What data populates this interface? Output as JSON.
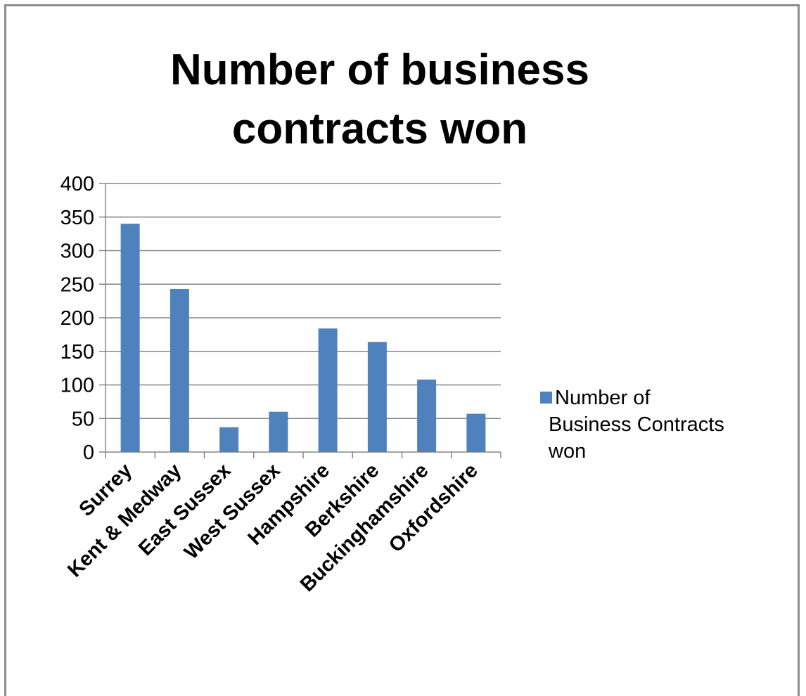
{
  "chart_data": {
    "type": "bar",
    "title": "Number of business contracts won",
    "title_lines": [
      "Number of business",
      "contracts won"
    ],
    "categories": [
      "Surrey",
      "Kent & Medway",
      "East Sussex",
      "West Sussex",
      "Hampshire",
      "Berkshire",
      "Buckinghamshire",
      "Oxfordshire"
    ],
    "series": [
      {
        "name": "Number of Business Contracts won",
        "name_lines": [
          "Number of",
          "Business Contracts",
          "won"
        ],
        "values": [
          340,
          243,
          37,
          60,
          184,
          164,
          108,
          57
        ],
        "color": "#4f81bd"
      }
    ],
    "xlabel": "",
    "ylabel": "",
    "ylim": [
      0,
      400
    ],
    "yticks": [
      0,
      50,
      100,
      150,
      200,
      250,
      300,
      350,
      400
    ],
    "grid": true,
    "legend_position": "right"
  }
}
